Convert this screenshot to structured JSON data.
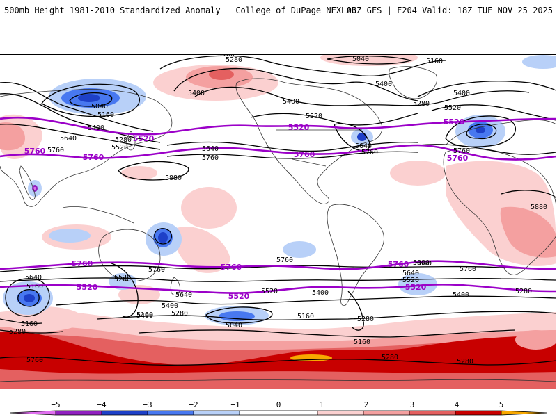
{
  "header": {
    "title": "500mb Height 1981-2010 Standardized Anomaly | College of DuPage NEXLAB",
    "run_info": "06Z GFS | F204 Valid: 18Z TUE NOV 25 2025"
  },
  "colors": {
    "land_line": "#333333",
    "contour": "#000000",
    "highlight_contour": "#9b00c8",
    "neg5": "#e070f0",
    "neg4": "#9020c0",
    "neg3": "#1e40c8",
    "neg2": "#4878f0",
    "neg1": "#b8d0f8",
    "zero": "#ffffff",
    "pos1": "#fbd0d0",
    "pos2": "#f4a0a0",
    "pos3": "#e46060",
    "pos4": "#c80000",
    "pos5": "#f8a800"
  },
  "contour_labels": [
    {
      "id": "c1",
      "text": "5160"
    },
    {
      "id": "c2",
      "text": "5280"
    },
    {
      "id": "c3",
      "text": "5040"
    },
    {
      "id": "c4",
      "text": "5160"
    },
    {
      "id": "c5",
      "text": "5400"
    },
    {
      "id": "c6",
      "text": "5040"
    },
    {
      "id": "c7",
      "text": "5160"
    },
    {
      "id": "c8",
      "text": "5400"
    },
    {
      "id": "c9",
      "text": "5640"
    },
    {
      "id": "c10",
      "text": "5280"
    },
    {
      "id": "c11",
      "text": "5520"
    },
    {
      "id": "c12",
      "text": "5760"
    },
    {
      "id": "c13",
      "text": "5400"
    },
    {
      "id": "c14",
      "text": "5520"
    },
    {
      "id": "c15",
      "text": "5640"
    },
    {
      "id": "c16",
      "text": "5760"
    },
    {
      "id": "c17",
      "text": "5880"
    },
    {
      "id": "c18",
      "text": "5640"
    },
    {
      "id": "c19",
      "text": "5760"
    },
    {
      "id": "c20",
      "text": "5400"
    },
    {
      "id": "c21",
      "text": "5280"
    },
    {
      "id": "c22",
      "text": "5520"
    },
    {
      "id": "c23",
      "text": "5400"
    },
    {
      "id": "c24",
      "text": "5760"
    },
    {
      "id": "c25",
      "text": "5880"
    },
    {
      "id": "c26",
      "text": "5760"
    },
    {
      "id": "c27",
      "text": "5760"
    },
    {
      "id": "c28",
      "text": "5640"
    },
    {
      "id": "c29",
      "text": "5520"
    },
    {
      "id": "c30",
      "text": "5640"
    },
    {
      "id": "c31",
      "text": "5400"
    },
    {
      "id": "c32",
      "text": "5160"
    },
    {
      "id": "c33",
      "text": "5280"
    },
    {
      "id": "c34",
      "text": "5520"
    },
    {
      "id": "c35",
      "text": "5400"
    },
    {
      "id": "c36",
      "text": "5040"
    },
    {
      "id": "c37",
      "text": "5160"
    },
    {
      "id": "c38",
      "text": "5280"
    },
    {
      "id": "c39",
      "text": "5160"
    },
    {
      "id": "c40",
      "text": "5280"
    },
    {
      "id": "c41",
      "text": "5280"
    },
    {
      "id": "c42",
      "text": "5640"
    },
    {
      "id": "c43",
      "text": "5520"
    },
    {
      "id": "c44",
      "text": "5400"
    },
    {
      "id": "c45",
      "text": "5280"
    },
    {
      "id": "c46",
      "text": "5160"
    },
    {
      "id": "c47",
      "text": "5280"
    },
    {
      "id": "c48",
      "text": "5760"
    },
    {
      "id": "c49",
      "text": "5880"
    },
    {
      "id": "c50",
      "text": "5760"
    },
    {
      "id": "c51",
      "text": "5640"
    },
    {
      "id": "c52",
      "text": "5160"
    },
    {
      "id": "c53",
      "text": "5400"
    },
    {
      "id": "c54",
      "text": "5280"
    }
  ],
  "highlight_labels": [
    {
      "id": "h1",
      "text": "5520"
    },
    {
      "id": "h2",
      "text": "5520"
    },
    {
      "id": "h3",
      "text": "5520"
    },
    {
      "id": "h4",
      "text": "5760"
    },
    {
      "id": "h5",
      "text": "5760"
    },
    {
      "id": "h6",
      "text": "5760"
    },
    {
      "id": "h7",
      "text": "5760"
    },
    {
      "id": "h8",
      "text": "5760"
    },
    {
      "id": "h9",
      "text": "5760"
    },
    {
      "id": "h10",
      "text": "5520"
    },
    {
      "id": "h11",
      "text": "5520"
    },
    {
      "id": "h12",
      "text": "5520"
    },
    {
      "id": "h13",
      "text": "5760"
    }
  ],
  "colorbar": {
    "ticks": [
      "−5",
      "−4",
      "−3",
      "−2",
      "−1",
      "0",
      "1",
      "2",
      "3",
      "4",
      "5"
    ]
  }
}
